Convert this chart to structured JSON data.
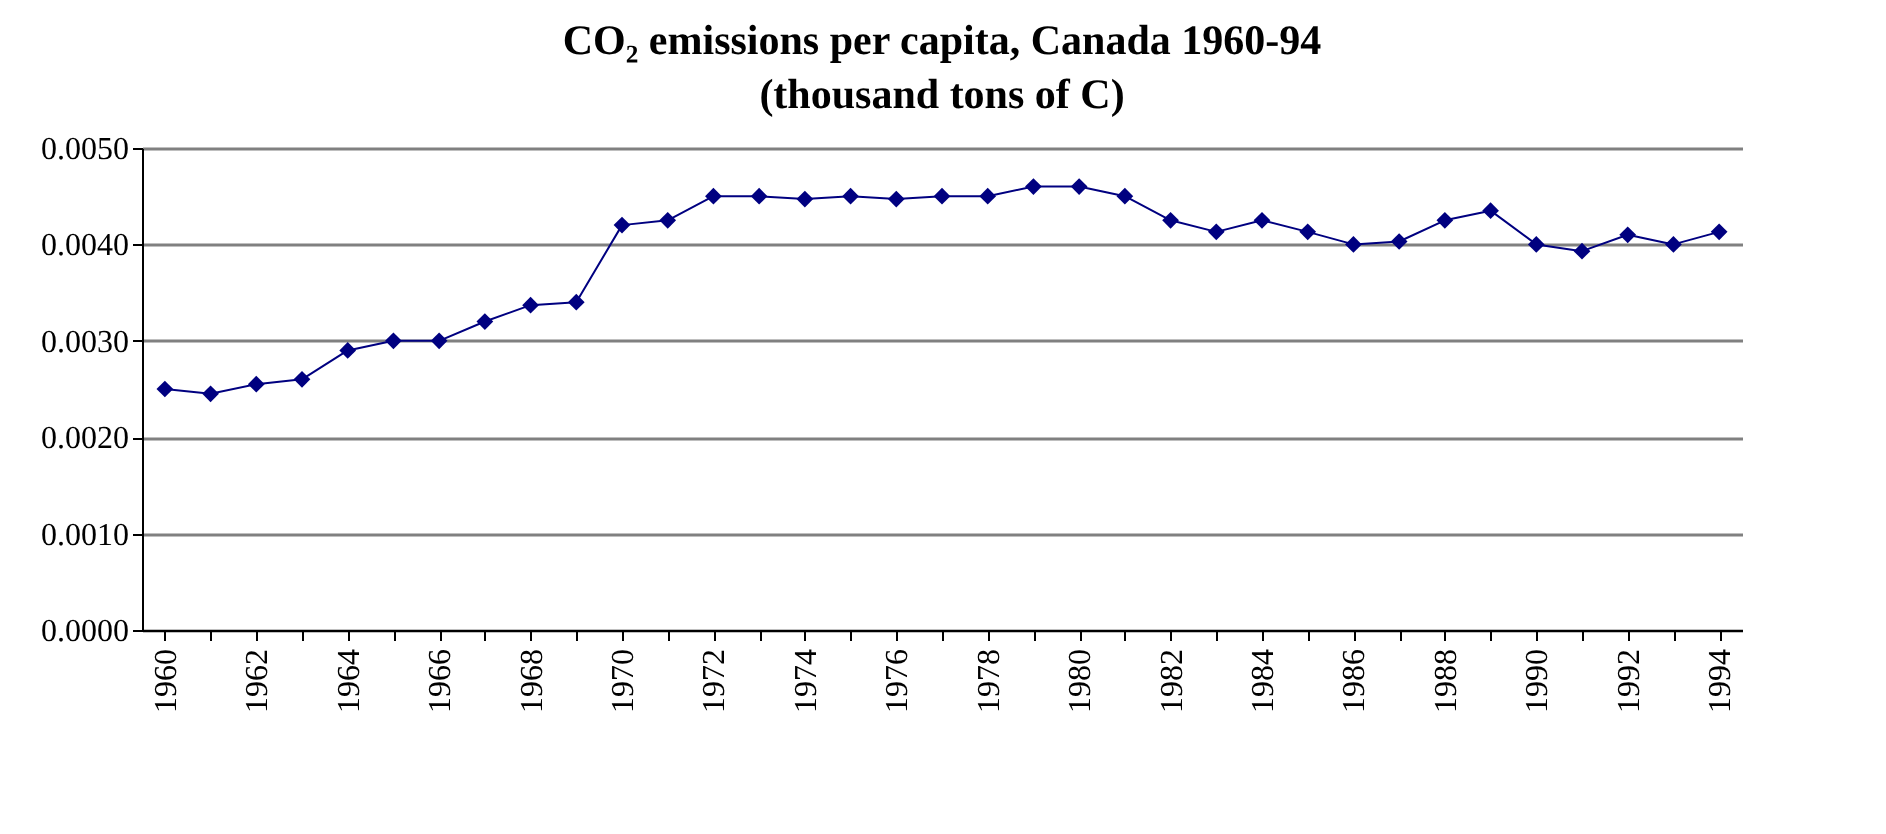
{
  "chart_data": {
    "type": "line",
    "title": "CO₂ emissions per capita, Canada 1960-94",
    "subtitle": "(thousand tons of C)",
    "categories": [
      "1960",
      null,
      "1962",
      null,
      "1964",
      null,
      "1966",
      null,
      "1968",
      null,
      "1970",
      null,
      "1972",
      null,
      "1974",
      null,
      "1976",
      null,
      "1978",
      null,
      "1980",
      null,
      "1982",
      null,
      "1984",
      null,
      "1986",
      null,
      "1988",
      null,
      "1990",
      null,
      "1992",
      null,
      "1994"
    ],
    "series": [
      {
        "color": "#000080",
        "values": [
          0.0025,
          0.00245,
          0.00255,
          0.0026,
          0.0029,
          0.003,
          0.003,
          0.0032,
          0.00337,
          0.0034,
          0.0042,
          0.00425,
          0.0045,
          0.0045,
          0.00447,
          0.0045,
          0.00447,
          0.0045,
          0.0045,
          0.0046,
          0.0046,
          0.0045,
          0.00425,
          0.00413,
          0.00425,
          0.00413,
          0.004,
          0.00403,
          0.00425,
          0.00435,
          0.004,
          0.00393,
          0.0041,
          0.004,
          0.00413
        ]
      }
    ],
    "ylim": [
      0,
      0.005
    ],
    "yticks": [
      {
        "value": 0,
        "label": "0.0000"
      },
      {
        "value": 0.001,
        "label": "0.0010"
      },
      {
        "value": 0.002,
        "label": "0.0020"
      },
      {
        "value": 0.003,
        "label": "0.0030"
      },
      {
        "value": 0.004,
        "label": "0.0040"
      },
      {
        "value": 0.005,
        "label": "0.0050"
      }
    ],
    "grid": "y",
    "marker": "diamond",
    "line_style": "solid"
  }
}
